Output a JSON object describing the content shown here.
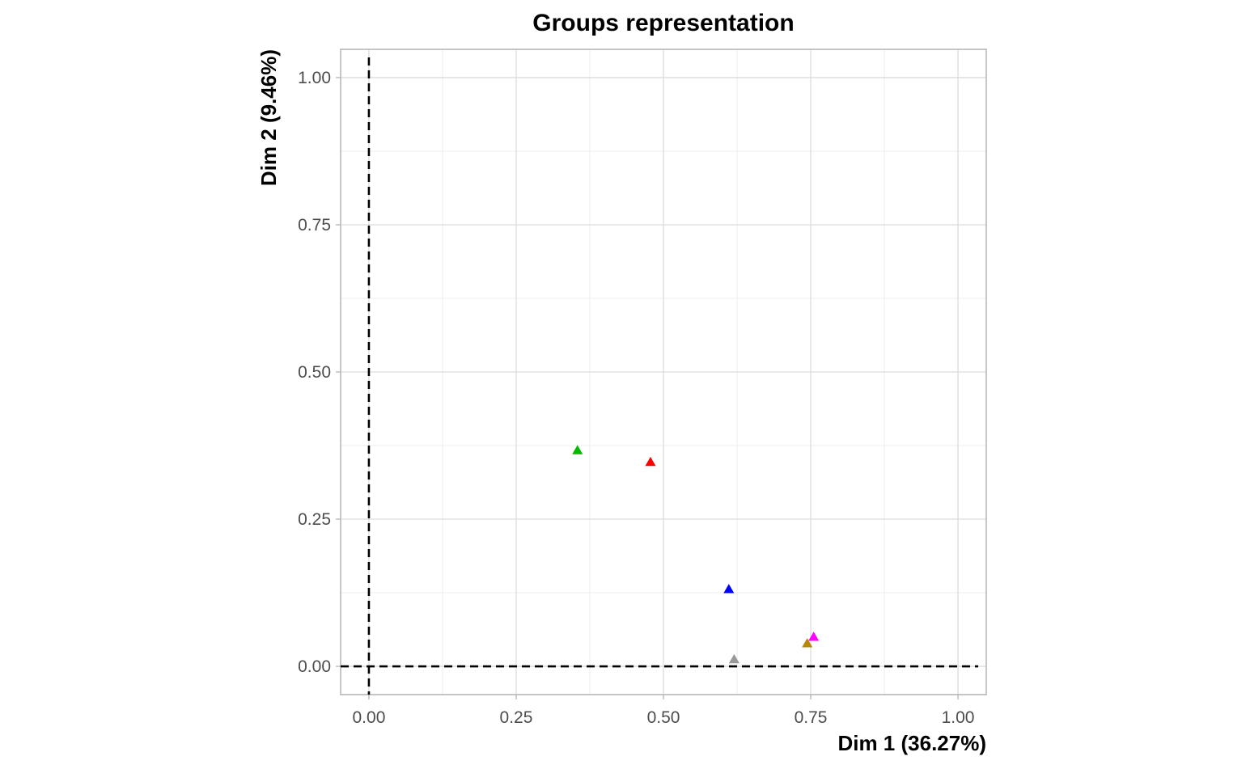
{
  "chart_data": {
    "type": "scatter",
    "title": "Groups representation",
    "xlabel": "Dim 1 (36.27%)",
    "ylabel": "Dim 2 (9.46%)",
    "xlim": [
      -0.048,
      1.048
    ],
    "ylim": [
      -0.048,
      1.048
    ],
    "x_ticks": [
      0.0,
      0.25,
      0.5,
      0.75,
      1.0
    ],
    "x_tick_labels": [
      "0.00",
      "0.25",
      "0.50",
      "0.75",
      "1.00"
    ],
    "y_ticks": [
      0.0,
      0.25,
      0.5,
      0.75,
      1.0
    ],
    "y_tick_labels": [
      "0.00",
      "0.25",
      "0.50",
      "0.75",
      "1.00"
    ],
    "grid": true,
    "reference_lines": {
      "x": 0,
      "y": 0,
      "style": "dashed"
    },
    "marker": "triangle",
    "points": [
      {
        "x": 0.354,
        "y": 0.367,
        "color": "#00BA00"
      },
      {
        "x": 0.478,
        "y": 0.347,
        "color": "#FF0000"
      },
      {
        "x": 0.611,
        "y": 0.131,
        "color": "#0000FF"
      },
      {
        "x": 0.62,
        "y": 0.012,
        "color": "#999999"
      },
      {
        "x": 0.744,
        "y": 0.039,
        "color": "#B8860B"
      },
      {
        "x": 0.755,
        "y": 0.05,
        "color": "#FF00FF"
      }
    ]
  }
}
